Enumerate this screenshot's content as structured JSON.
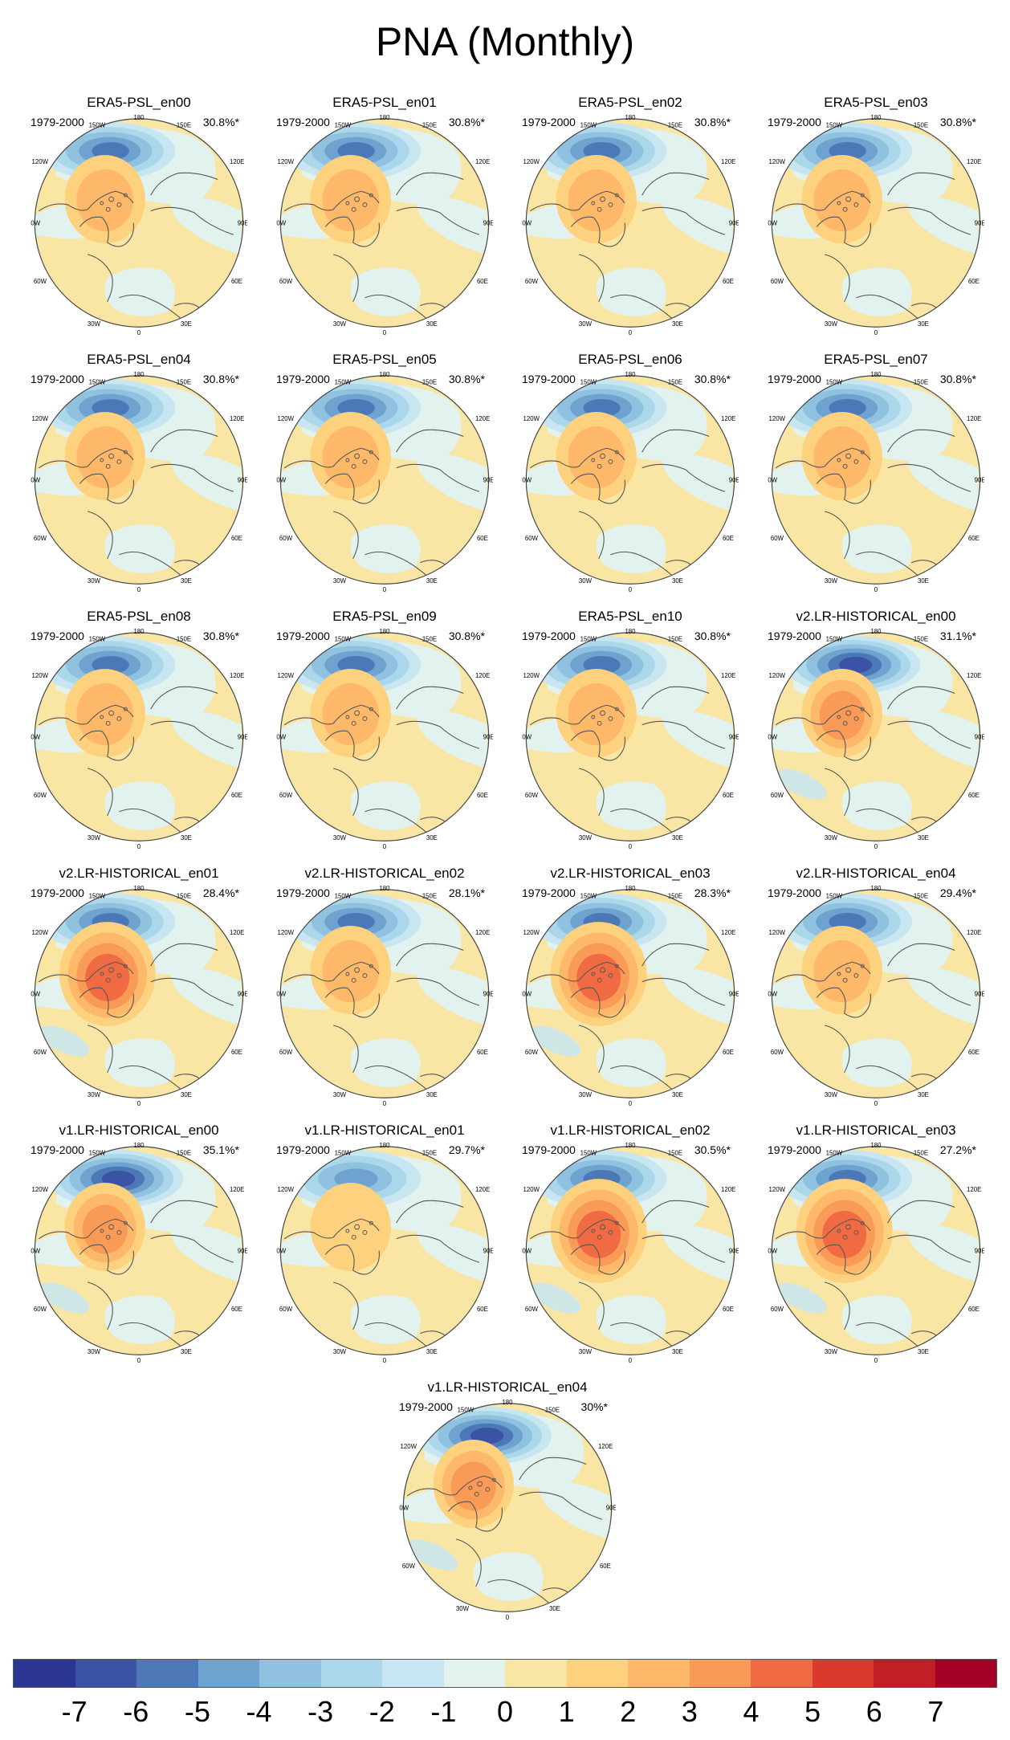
{
  "title": "PNA (Monthly)",
  "panels": [
    {
      "title": "ERA5-PSL_en00",
      "years": "1979-2000",
      "pct": "30.8%*",
      "variant": "era"
    },
    {
      "title": "ERA5-PSL_en01",
      "years": "1979-2000",
      "pct": "30.8%*",
      "variant": "era"
    },
    {
      "title": "ERA5-PSL_en02",
      "years": "1979-2000",
      "pct": "30.8%*",
      "variant": "era"
    },
    {
      "title": "ERA5-PSL_en03",
      "years": "1979-2000",
      "pct": "30.8%*",
      "variant": "era"
    },
    {
      "title": "ERA5-PSL_en04",
      "years": "1979-2000",
      "pct": "30.8%*",
      "variant": "era"
    },
    {
      "title": "ERA5-PSL_en05",
      "years": "1979-2000",
      "pct": "30.8%*",
      "variant": "era"
    },
    {
      "title": "ERA5-PSL_en06",
      "years": "1979-2000",
      "pct": "30.8%*",
      "variant": "era"
    },
    {
      "title": "ERA5-PSL_en07",
      "years": "1979-2000",
      "pct": "30.8%*",
      "variant": "era"
    },
    {
      "title": "ERA5-PSL_en08",
      "years": "1979-2000",
      "pct": "30.8%*",
      "variant": "era"
    },
    {
      "title": "ERA5-PSL_en09",
      "years": "1979-2000",
      "pct": "30.8%*",
      "variant": "era"
    },
    {
      "title": "ERA5-PSL_en10",
      "years": "1979-2000",
      "pct": "30.8%*",
      "variant": "era"
    },
    {
      "title": "v2.LR-HISTORICAL_en00",
      "years": "1979-2000",
      "pct": "31.1%*",
      "variant": "strong"
    },
    {
      "title": "v2.LR-HISTORICAL_en01",
      "years": "1979-2000",
      "pct": "28.4%*",
      "variant": "broad"
    },
    {
      "title": "v2.LR-HISTORICAL_en02",
      "years": "1979-2000",
      "pct": "28.1%*",
      "variant": "era"
    },
    {
      "title": "v2.LR-HISTORICAL_en03",
      "years": "1979-2000",
      "pct": "28.3%*",
      "variant": "broad"
    },
    {
      "title": "v2.LR-HISTORICAL_en04",
      "years": "1979-2000",
      "pct": "29.4%*",
      "variant": "era"
    },
    {
      "title": "v1.LR-HISTORICAL_en00",
      "years": "1979-2000",
      "pct": "35.1%*",
      "variant": "strong"
    },
    {
      "title": "v1.LR-HISTORICAL_en01",
      "years": "1979-2000",
      "pct": "29.7%*",
      "variant": "weak"
    },
    {
      "title": "v1.LR-HISTORICAL_en02",
      "years": "1979-2000",
      "pct": "30.5%*",
      "variant": "broad"
    },
    {
      "title": "v1.LR-HISTORICAL_en03",
      "years": "1979-2000",
      "pct": "27.2%*",
      "variant": "broad"
    },
    {
      "title": "v1.LR-HISTORICAL_en04",
      "years": "1979-2000",
      "pct": "30%*",
      "variant": "strong"
    }
  ],
  "map_labels": {
    "top": "180",
    "tl": "150W",
    "tr": "150E",
    "ul": "120W",
    "ur": "120E",
    "ml": "90W",
    "mr": "90E",
    "ll": "60W",
    "lr": "60E",
    "bl": "30W",
    "br": "30E",
    "bottom": "0"
  },
  "colorbar": {
    "colors": [
      "#2b3692",
      "#3a53a4",
      "#4d78b8",
      "#6ea3cf",
      "#90c2e0",
      "#aad7ea",
      "#c7e6f1",
      "#e2f2ee",
      "#f9e5a4",
      "#fdd17e",
      "#fdb86a",
      "#fa9a57",
      "#f06b43",
      "#da3a2c",
      "#c01f26",
      "#a50026"
    ],
    "labels": [
      "-7",
      "-6",
      "-5",
      "-4",
      "-3",
      "-2",
      "-1",
      "0",
      "1",
      "2",
      "3",
      "4",
      "5",
      "6",
      "7"
    ]
  }
}
